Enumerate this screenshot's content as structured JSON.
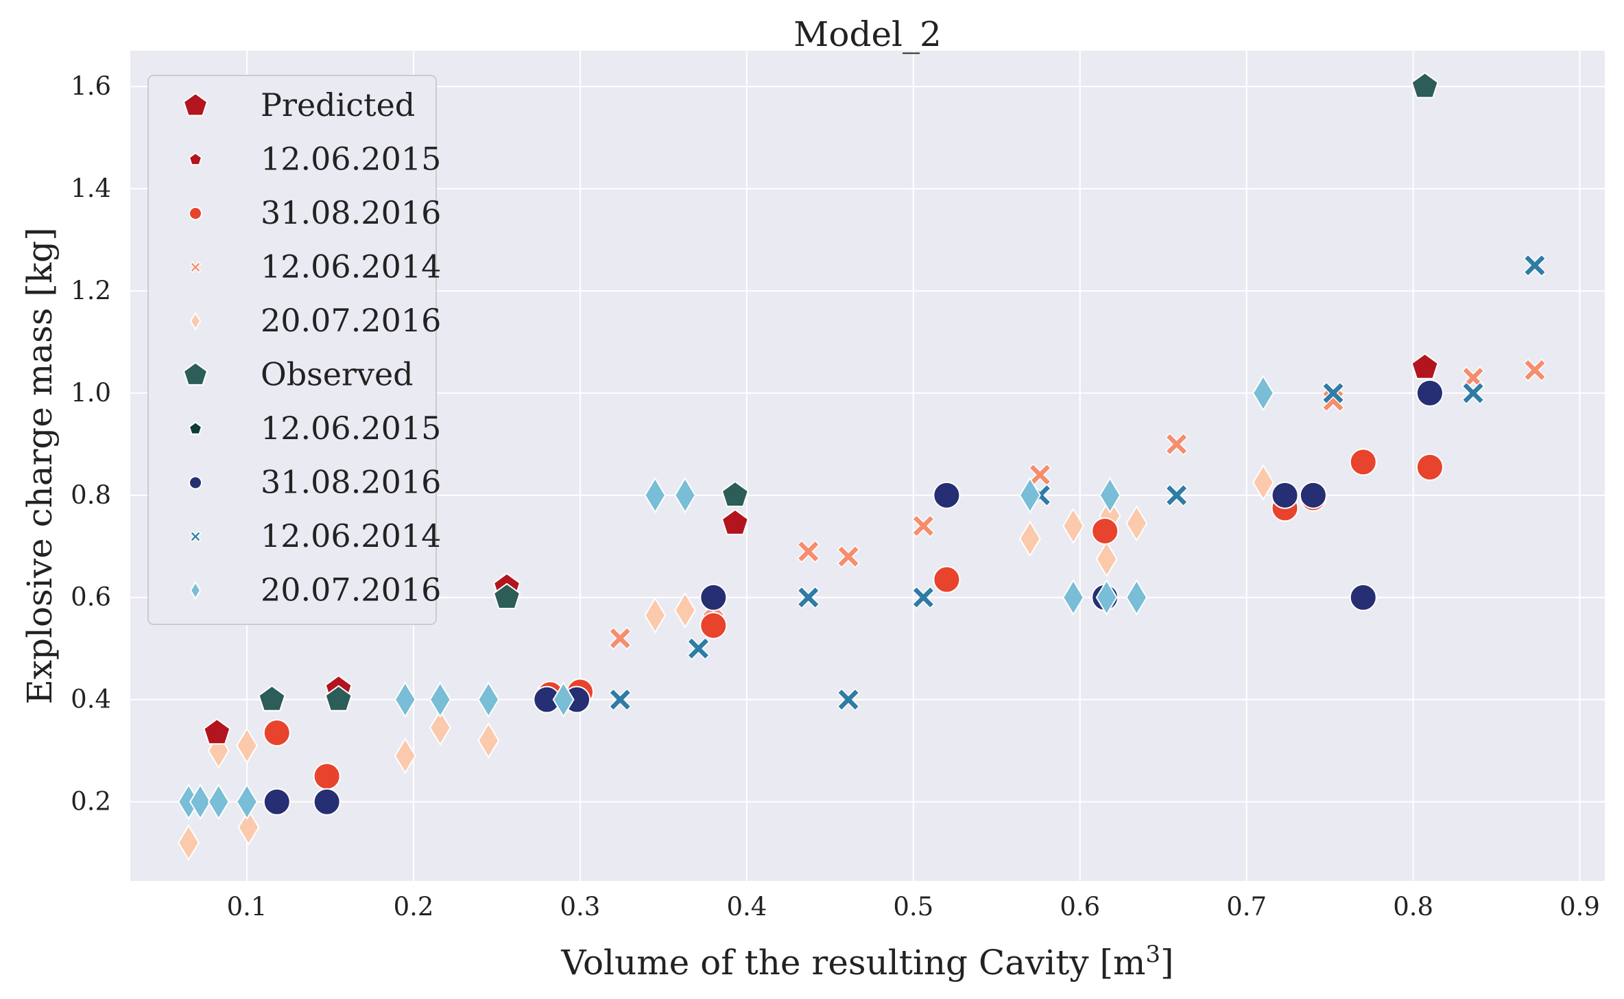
{
  "chart_data": {
    "type": "scatter",
    "title": "Model_2",
    "xlabel_main": "Volume of the resulting Cavity [m",
    "xlabel_sup": "3",
    "xlabel_end": "]",
    "ylabel": "Explosive charge mass [kg]",
    "xlim": [
      0.03,
      0.915
    ],
    "ylim": [
      0.045,
      1.67
    ],
    "xticks": [
      "0.1",
      "0.2",
      "0.3",
      "0.4",
      "0.5",
      "0.6",
      "0.7",
      "0.8",
      "0.9"
    ],
    "yticks": [
      "0.2",
      "0.4",
      "0.6",
      "0.8",
      "1.0",
      "1.2",
      "1.4",
      "1.6"
    ],
    "grid": true,
    "legend_position": "top-left",
    "legend": [
      {
        "label": "Predicted",
        "kind": "header",
        "shape": "pentagon",
        "color": "#b2151d"
      },
      {
        "label": "12.06.2015",
        "kind": "item",
        "shape": "pentagon",
        "color": "#b2151d"
      },
      {
        "label": "31.08.2016",
        "kind": "item",
        "shape": "circle",
        "color": "#e8432d"
      },
      {
        "label": "12.06.2014",
        "kind": "item",
        "shape": "x",
        "color": "#f58d6f"
      },
      {
        "label": "20.07.2016",
        "kind": "item",
        "shape": "diamond",
        "color": "#fbc9ac"
      },
      {
        "label": "Observed",
        "kind": "header",
        "shape": "pentagon",
        "color": "#2c5d58"
      },
      {
        "label": "12.06.2015",
        "kind": "item",
        "shape": "pentagon",
        "color": "#0f3b36"
      },
      {
        "label": "31.08.2016",
        "kind": "item",
        "shape": "circle",
        "color": "#262f73"
      },
      {
        "label": "12.06.2014",
        "kind": "item",
        "shape": "x",
        "color": "#2f7ca5"
      },
      {
        "label": "20.07.2016",
        "kind": "item",
        "shape": "diamond",
        "color": "#79bdd6"
      }
    ],
    "series": [
      {
        "name": "Predicted 20.07.2016",
        "shape": "diamond",
        "color": "#fbc9ac",
        "x": [
          0.065,
          0.083,
          0.1,
          0.101,
          0.195,
          0.216,
          0.245,
          0.345,
          0.363,
          0.57,
          0.596,
          0.616,
          0.618,
          0.634,
          0.71
        ],
        "y": [
          0.12,
          0.3,
          0.31,
          0.15,
          0.29,
          0.345,
          0.32,
          0.565,
          0.575,
          0.715,
          0.74,
          0.675,
          0.76,
          0.745,
          0.825
        ]
      },
      {
        "name": "Predicted 12.06.2014",
        "shape": "x",
        "color": "#f58d6f",
        "x": [
          0.324,
          0.38,
          0.437,
          0.461,
          0.506,
          0.576,
          0.658,
          0.752,
          0.836,
          0.873
        ],
        "y": [
          0.52,
          0.58,
          0.69,
          0.68,
          0.74,
          0.84,
          0.9,
          0.985,
          1.03,
          1.045
        ]
      },
      {
        "name": "Predicted 31.08.2016",
        "shape": "circle",
        "color": "#e8432d",
        "x": [
          0.118,
          0.148,
          0.282,
          0.3,
          0.38,
          0.52,
          0.615,
          0.723,
          0.74,
          0.77,
          0.81
        ],
        "y": [
          0.335,
          0.25,
          0.41,
          0.415,
          0.545,
          0.635,
          0.73,
          0.775,
          0.795,
          0.865,
          0.855
        ]
      },
      {
        "name": "Predicted 12.06.2015",
        "shape": "pentagon",
        "color": "#b2151d",
        "x": [
          0.082,
          0.115,
          0.155,
          0.256,
          0.393,
          0.807
        ],
        "y": [
          0.335,
          0.4,
          0.42,
          0.62,
          0.745,
          1.05
        ]
      },
      {
        "name": "Observed 31.08.2016",
        "shape": "circle",
        "color": "#262f73",
        "x": [
          0.118,
          0.148,
          0.28,
          0.298,
          0.38,
          0.52,
          0.615,
          0.723,
          0.74,
          0.77,
          0.81
        ],
        "y": [
          0.2,
          0.2,
          0.4,
          0.4,
          0.6,
          0.8,
          0.6,
          0.8,
          0.8,
          0.6,
          1.0
        ]
      },
      {
        "name": "Observed 12.06.2014",
        "shape": "x",
        "color": "#2f7ca5",
        "x": [
          0.324,
          0.371,
          0.437,
          0.461,
          0.506,
          0.576,
          0.658,
          0.752,
          0.836,
          0.873
        ],
        "y": [
          0.4,
          0.5,
          0.6,
          0.4,
          0.6,
          0.8,
          0.8,
          1.0,
          1.0,
          1.25
        ]
      },
      {
        "name": "Observed 12.06.2015",
        "shape": "pentagon",
        "color": "#2c5d58",
        "x": [
          0.115,
          0.155,
          0.256,
          0.393,
          0.807
        ],
        "y": [
          0.4,
          0.4,
          0.6,
          0.8,
          1.6
        ]
      },
      {
        "name": "Observed 20.07.2016",
        "shape": "diamond",
        "color": "#79bdd6",
        "x": [
          0.065,
          0.072,
          0.083,
          0.1,
          0.195,
          0.216,
          0.245,
          0.29,
          0.345,
          0.363,
          0.57,
          0.596,
          0.616,
          0.618,
          0.634,
          0.71
        ],
        "y": [
          0.2,
          0.2,
          0.2,
          0.2,
          0.4,
          0.4,
          0.4,
          0.4,
          0.8,
          0.8,
          0.8,
          0.6,
          0.6,
          0.8,
          0.6,
          1.0
        ]
      }
    ]
  }
}
